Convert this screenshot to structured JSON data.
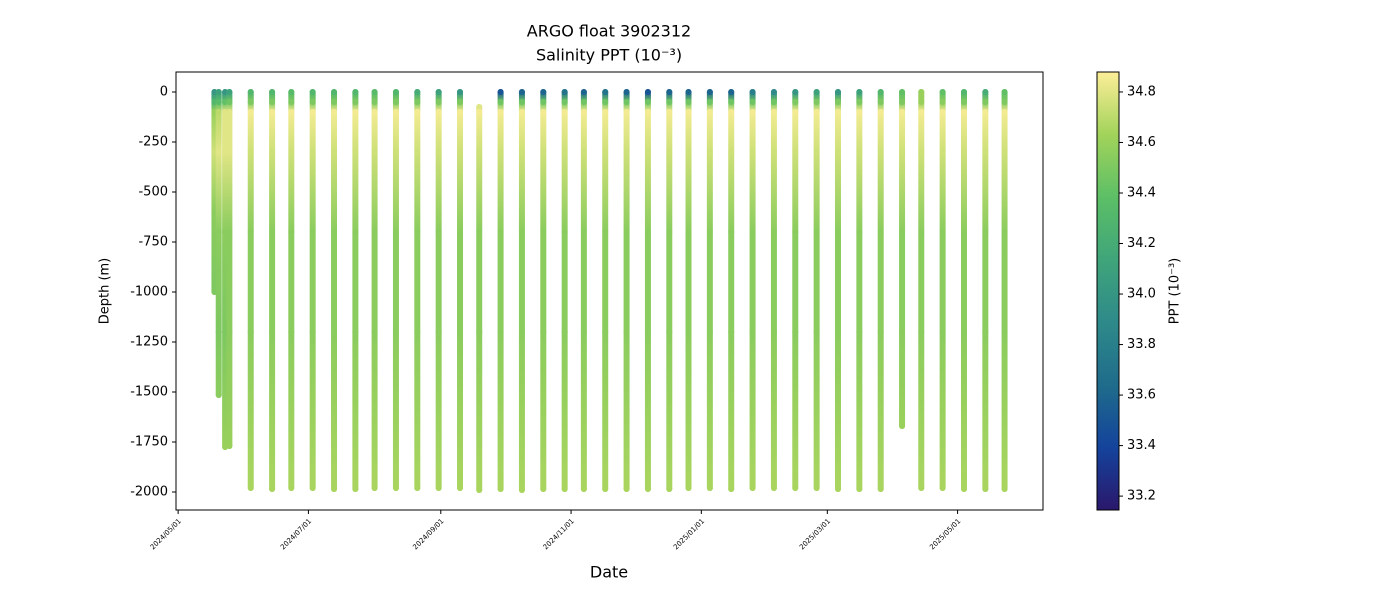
{
  "chart_data": {
    "type": "profile_scatter",
    "title": "ARGO float 3902312",
    "subtitle": "Salinity PPT (10⁻³)",
    "x_label": "Date",
    "y_label": "Depth (m)",
    "colorbar_label": "PPT (10⁻³)",
    "xlim": [
      "2024-04-30",
      "2025-06-10"
    ],
    "xticks": [
      {
        "value": "2024-05-01",
        "label": "2024/05/01"
      },
      {
        "value": "2024-07-01",
        "label": "2024/07/01"
      },
      {
        "value": "2024-09-01",
        "label": "2024/09/01"
      },
      {
        "value": "2024-11-01",
        "label": "2024/11/01"
      },
      {
        "value": "2025-01-01",
        "label": "2025/01/01"
      },
      {
        "value": "2025-03-01",
        "label": "2025/03/01"
      },
      {
        "value": "2025-05-01",
        "label": "2025/05/01"
      }
    ],
    "ylim": [
      -2090,
      100
    ],
    "yticks": [
      0,
      -250,
      -500,
      -750,
      -1000,
      -1250,
      -1500,
      -1750,
      -2000
    ],
    "clim": [
      33.145,
      34.879
    ],
    "cticks": [
      33.2,
      33.4,
      33.6,
      33.8,
      34.0,
      34.2,
      34.4,
      34.6,
      34.8
    ],
    "colormap": [
      "#2a186c",
      "#14439c",
      "#1f6c8b",
      "#2e8a8a",
      "#3fa57a",
      "#5cbf66",
      "#a2d35a",
      "#fdee99"
    ],
    "profiles": [
      {
        "x": "2024-05-18",
        "depth": [
          0,
          -50,
          -100,
          -300,
          -600,
          -1000
        ],
        "salinity": [
          34.0,
          34.3,
          34.6,
          34.75,
          34.55,
          34.5
        ]
      },
      {
        "x": "2024-05-20",
        "depth": [
          0,
          -50,
          -100,
          -300,
          -700,
          -1200,
          -1515
        ],
        "salinity": [
          34.1,
          34.35,
          34.7,
          34.8,
          34.55,
          34.5,
          34.55
        ]
      },
      {
        "x": "2024-05-23",
        "depth": [
          0,
          -50,
          -100,
          -300,
          -700,
          -1200,
          -1775
        ],
        "salinity": [
          34.0,
          34.4,
          34.8,
          34.8,
          34.55,
          34.5,
          34.6
        ]
      },
      {
        "x": "2024-05-25",
        "depth": [
          0,
          -50,
          -100,
          -300,
          -700,
          -1200,
          -1770
        ],
        "salinity": [
          34.1,
          34.45,
          34.8,
          34.8,
          34.55,
          34.55,
          34.6
        ]
      },
      {
        "x": "2024-06-04",
        "depth": [
          0,
          -50,
          -100,
          -300,
          -700,
          -1200,
          -1980
        ],
        "salinity": [
          34.3,
          34.5,
          34.85,
          34.75,
          34.55,
          34.55,
          34.65
        ]
      },
      {
        "x": "2024-06-14",
        "depth": [
          0,
          -50,
          -100,
          -300,
          -700,
          -1200,
          -1985
        ],
        "salinity": [
          34.3,
          34.5,
          34.85,
          34.75,
          34.55,
          34.55,
          34.65
        ]
      },
      {
        "x": "2024-06-23",
        "depth": [
          0,
          -50,
          -100,
          -300,
          -700,
          -1200,
          -1980
        ],
        "salinity": [
          34.35,
          34.5,
          34.85,
          34.75,
          34.55,
          34.55,
          34.65
        ]
      },
      {
        "x": "2024-07-03",
        "depth": [
          0,
          -50,
          -100,
          -300,
          -700,
          -1200,
          -1980
        ],
        "salinity": [
          34.3,
          34.5,
          34.85,
          34.75,
          34.55,
          34.55,
          34.65
        ]
      },
      {
        "x": "2024-07-13",
        "depth": [
          0,
          -50,
          -100,
          -300,
          -700,
          -1200,
          -1985
        ],
        "salinity": [
          34.3,
          34.5,
          34.85,
          34.75,
          34.55,
          34.55,
          34.65
        ]
      },
      {
        "x": "2024-07-23",
        "depth": [
          0,
          -50,
          -100,
          -300,
          -700,
          -1200,
          -1985
        ],
        "salinity": [
          34.3,
          34.5,
          34.85,
          34.75,
          34.55,
          34.55,
          34.65
        ]
      },
      {
        "x": "2024-08-01",
        "depth": [
          0,
          -50,
          -100,
          -300,
          -700,
          -1200,
          -1980
        ],
        "salinity": [
          34.35,
          34.5,
          34.85,
          34.75,
          34.55,
          34.55,
          34.65
        ]
      },
      {
        "x": "2024-08-11",
        "depth": [
          0,
          -50,
          -100,
          -300,
          -700,
          -1200,
          -1980
        ],
        "salinity": [
          34.3,
          34.5,
          34.85,
          34.75,
          34.55,
          34.55,
          34.65
        ]
      },
      {
        "x": "2024-08-21",
        "depth": [
          0,
          -50,
          -100,
          -300,
          -700,
          -1200,
          -1980
        ],
        "salinity": [
          34.2,
          34.5,
          34.85,
          34.75,
          34.55,
          34.55,
          34.65
        ]
      },
      {
        "x": "2024-08-31",
        "depth": [
          0,
          -50,
          -100,
          -300,
          -700,
          -1200,
          -1980
        ],
        "salinity": [
          34.1,
          34.5,
          34.85,
          34.75,
          34.55,
          34.55,
          34.65
        ]
      },
      {
        "x": "2024-09-10",
        "depth": [
          0,
          -50,
          -100,
          -300,
          -700,
          -1200,
          -1980
        ],
        "salinity": [
          34.0,
          34.5,
          34.85,
          34.75,
          34.55,
          34.55,
          34.65
        ]
      },
      {
        "x": "2024-09-19",
        "depth": [
          -75,
          -100,
          -300,
          -700,
          -1200,
          -1990
        ],
        "salinity": [
          34.8,
          34.85,
          34.75,
          34.55,
          34.55,
          34.65
        ]
      },
      {
        "x": "2024-09-29",
        "depth": [
          0,
          -50,
          -100,
          -300,
          -700,
          -1200,
          -1985
        ],
        "salinity": [
          33.5,
          34.45,
          34.85,
          34.75,
          34.55,
          34.55,
          34.65
        ]
      },
      {
        "x": "2024-10-09",
        "depth": [
          0,
          -50,
          -100,
          -300,
          -700,
          -1200,
          -1990
        ],
        "salinity": [
          33.6,
          34.45,
          34.85,
          34.75,
          34.55,
          34.55,
          34.65
        ]
      },
      {
        "x": "2024-10-19",
        "depth": [
          0,
          -50,
          -100,
          -300,
          -700,
          -1200,
          -1985
        ],
        "salinity": [
          33.6,
          34.45,
          34.85,
          34.75,
          34.55,
          34.55,
          34.65
        ]
      },
      {
        "x": "2024-10-29",
        "depth": [
          0,
          -50,
          -100,
          -300,
          -700,
          -1200,
          -1985
        ],
        "salinity": [
          33.7,
          34.45,
          34.85,
          34.75,
          34.55,
          34.55,
          34.65
        ]
      },
      {
        "x": "2024-11-07",
        "depth": [
          0,
          -50,
          -100,
          -300,
          -700,
          -1200,
          -1985
        ],
        "salinity": [
          33.6,
          34.45,
          34.85,
          34.75,
          34.55,
          34.55,
          34.65
        ]
      },
      {
        "x": "2024-11-17",
        "depth": [
          0,
          -50,
          -100,
          -300,
          -700,
          -1200,
          -1985
        ],
        "salinity": [
          33.7,
          34.45,
          34.85,
          34.75,
          34.55,
          34.55,
          34.65
        ]
      },
      {
        "x": "2024-11-27",
        "depth": [
          0,
          -50,
          -100,
          -300,
          -700,
          -1200,
          -1985
        ],
        "salinity": [
          33.6,
          34.45,
          34.85,
          34.75,
          34.55,
          34.55,
          34.65
        ]
      },
      {
        "x": "2024-12-07",
        "depth": [
          0,
          -50,
          -100,
          -300,
          -700,
          -1200,
          -1985
        ],
        "salinity": [
          33.5,
          34.45,
          34.85,
          34.75,
          34.55,
          34.55,
          34.65
        ]
      },
      {
        "x": "2024-12-17",
        "depth": [
          0,
          -50,
          -100,
          -300,
          -700,
          -1200,
          -1985
        ],
        "salinity": [
          33.6,
          34.45,
          34.85,
          34.75,
          34.55,
          34.55,
          34.65
        ]
      },
      {
        "x": "2024-12-26",
        "depth": [
          0,
          -50,
          -100,
          -300,
          -700,
          -1200,
          -1980
        ],
        "salinity": [
          33.6,
          34.45,
          34.85,
          34.75,
          34.55,
          34.55,
          34.65
        ]
      },
      {
        "x": "2025-01-05",
        "depth": [
          0,
          -50,
          -100,
          -300,
          -700,
          -1200,
          -1980
        ],
        "salinity": [
          33.6,
          34.45,
          34.85,
          34.75,
          34.55,
          34.55,
          34.65
        ]
      },
      {
        "x": "2025-01-15",
        "depth": [
          0,
          -50,
          -100,
          -300,
          -700,
          -1200,
          -1985
        ],
        "salinity": [
          33.6,
          34.45,
          34.85,
          34.75,
          34.55,
          34.55,
          34.65
        ]
      },
      {
        "x": "2025-01-25",
        "depth": [
          0,
          -50,
          -100,
          -300,
          -700,
          -1200,
          -1980
        ],
        "salinity": [
          33.8,
          34.45,
          34.85,
          34.75,
          34.55,
          34.55,
          34.65
        ]
      },
      {
        "x": "2025-02-04",
        "depth": [
          0,
          -50,
          -100,
          -300,
          -700,
          -1200,
          -1980
        ],
        "salinity": [
          33.9,
          34.45,
          34.85,
          34.75,
          34.55,
          34.55,
          34.65
        ]
      },
      {
        "x": "2025-02-14",
        "depth": [
          0,
          -50,
          -100,
          -300,
          -700,
          -1200,
          -1980
        ],
        "salinity": [
          34.0,
          34.5,
          34.85,
          34.75,
          34.55,
          34.55,
          34.65
        ]
      },
      {
        "x": "2025-02-24",
        "depth": [
          0,
          -50,
          -100,
          -300,
          -700,
          -1200,
          -1980
        ],
        "salinity": [
          34.1,
          34.5,
          34.85,
          34.75,
          34.55,
          34.55,
          34.65
        ]
      },
      {
        "x": "2025-03-06",
        "depth": [
          0,
          -50,
          -100,
          -300,
          -700,
          -1200,
          -1985
        ],
        "salinity": [
          34.0,
          34.5,
          34.85,
          34.75,
          34.55,
          34.55,
          34.65
        ]
      },
      {
        "x": "2025-03-16",
        "depth": [
          0,
          -50,
          -100,
          -300,
          -700,
          -1200,
          -1985
        ],
        "salinity": [
          34.1,
          34.5,
          34.85,
          34.75,
          34.55,
          34.55,
          34.65
        ]
      },
      {
        "x": "2025-03-26",
        "depth": [
          0,
          -50,
          -100,
          -300,
          -700,
          -1200,
          -1985
        ],
        "salinity": [
          34.3,
          34.5,
          34.85,
          34.75,
          34.55,
          34.55,
          34.65
        ]
      },
      {
        "x": "2025-04-05",
        "depth": [
          0,
          -50,
          -100,
          -300,
          -700,
          -1200,
          -1670
        ],
        "salinity": [
          34.4,
          34.5,
          34.85,
          34.75,
          34.55,
          34.55,
          34.6
        ]
      },
      {
        "x": "2025-04-14",
        "depth": [
          0,
          -50,
          -100,
          -300,
          -700,
          -1200,
          -1980
        ],
        "salinity": [
          34.6,
          34.6,
          34.85,
          34.75,
          34.55,
          34.55,
          34.65
        ]
      },
      {
        "x": "2025-04-24",
        "depth": [
          0,
          -50,
          -100,
          -300,
          -700,
          -1200,
          -1980
        ],
        "salinity": [
          34.4,
          34.55,
          34.85,
          34.75,
          34.55,
          34.55,
          34.65
        ]
      },
      {
        "x": "2025-05-04",
        "depth": [
          0,
          -50,
          -100,
          -300,
          -700,
          -1200,
          -1985
        ],
        "salinity": [
          34.3,
          34.5,
          34.85,
          34.75,
          34.55,
          34.55,
          34.65
        ]
      },
      {
        "x": "2025-05-14",
        "depth": [
          0,
          -50,
          -100,
          -300,
          -700,
          -1200,
          -1985
        ],
        "salinity": [
          34.2,
          34.5,
          34.85,
          34.75,
          34.55,
          34.55,
          34.65
        ]
      },
      {
        "x": "2025-05-23",
        "depth": [
          0,
          -50,
          -100,
          -300,
          -700,
          -1200,
          -1985
        ],
        "salinity": [
          34.4,
          34.5,
          34.85,
          34.75,
          34.55,
          34.55,
          34.65
        ]
      }
    ]
  }
}
